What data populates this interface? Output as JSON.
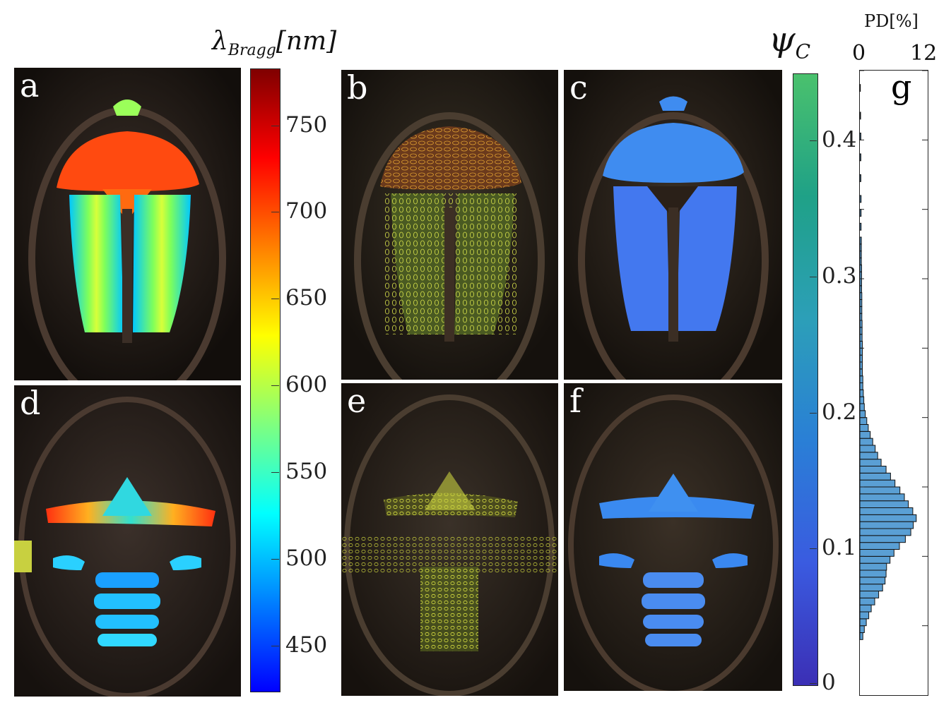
{
  "figure": {
    "panels": [
      {
        "id": "a",
        "label": "a",
        "mode": "bragg"
      },
      {
        "id": "b",
        "label": "b",
        "mode": "ellipse"
      },
      {
        "id": "c",
        "label": "c",
        "mode": "psi"
      },
      {
        "id": "d",
        "label": "d",
        "mode": "bragg-ventral"
      },
      {
        "id": "e",
        "label": "e",
        "mode": "ellipse-ventral"
      },
      {
        "id": "f",
        "label": "f",
        "mode": "psi-ventral"
      }
    ],
    "bragg_colorbar": {
      "title_main": "λ",
      "title_sub": "Bragg",
      "title_unit": "[nm]",
      "ticks": [
        "750",
        "700",
        "650",
        "600",
        "550",
        "500",
        "450"
      ],
      "colors": [
        "#7f0000",
        "#ff0000",
        "#ff7f00",
        "#ffff00",
        "#7fff7f",
        "#00ffff",
        "#007fff",
        "#0000ff"
      ]
    },
    "psi_colorbar": {
      "title_main": "ψ",
      "title_sub": "C",
      "ticks": [
        "0.4",
        "0.3",
        "0.2",
        "0.1",
        "0"
      ],
      "colors": [
        "#4ac16d",
        "#1fa187",
        "#2c9fb8",
        "#2a7fd6",
        "#3a5be0",
        "#3b2fb5"
      ]
    },
    "histogram": {
      "label": "g",
      "xlabel": "PD[%]",
      "xticks": [
        "0",
        "12"
      ],
      "bar_color": "#5a9fd4"
    }
  },
  "chart_data": {
    "type": "bar",
    "orientation": "horizontal",
    "xlabel": "PD[%]",
    "xlim": [
      0,
      12
    ],
    "ylim": [
      0,
      0.45
    ],
    "bin_centers": [
      0.0425,
      0.0475,
      0.0525,
      0.0575,
      0.0625,
      0.0675,
      0.0725,
      0.0775,
      0.0825,
      0.0875,
      0.0925,
      0.0975,
      0.1025,
      0.1075,
      0.1125,
      0.1175,
      0.1225,
      0.1275,
      0.1325,
      0.1375,
      0.1425,
      0.1475,
      0.1525,
      0.1575,
      0.1625,
      0.1675,
      0.1725,
      0.1775,
      0.1825,
      0.1875,
      0.1925,
      0.1975,
      0.2025,
      0.2075,
      0.2125,
      0.2175,
      0.2225,
      0.2275,
      0.2325,
      0.2375,
      0.2425,
      0.2475,
      0.2525,
      0.2575,
      0.2625,
      0.2675,
      0.2725,
      0.2775,
      0.2825,
      0.2875,
      0.2925,
      0.2975,
      0.3025,
      0.3075,
      0.3125,
      0.3175,
      0.3225,
      0.3275,
      0.3375,
      0.3475,
      0.3575,
      0.3725,
      0.3875,
      0.4025,
      0.4175,
      0.4375
    ],
    "values": [
      0.6,
      0.9,
      1.3,
      1.8,
      2.3,
      3.0,
      3.8,
      4.6,
      5.1,
      5.3,
      5.4,
      6.1,
      6.9,
      8.0,
      9.2,
      10.3,
      10.8,
      11.4,
      10.7,
      9.8,
      9.0,
      8.1,
      7.1,
      6.2,
      5.3,
      4.3,
      3.6,
      3.1,
      2.6,
      2.1,
      1.7,
      1.4,
      1.1,
      0.9,
      0.8,
      0.7,
      0.6,
      0.6,
      0.5,
      0.5,
      0.5,
      0.5,
      0.5,
      0.45,
      0.45,
      0.45,
      0.4,
      0.4,
      0.4,
      0.4,
      0.35,
      0.35,
      0.35,
      0.35,
      0.3,
      0.3,
      0.3,
      0.3,
      0.25,
      0.25,
      0.25,
      0.2,
      0.2,
      0.2,
      0.15,
      0.1
    ]
  }
}
